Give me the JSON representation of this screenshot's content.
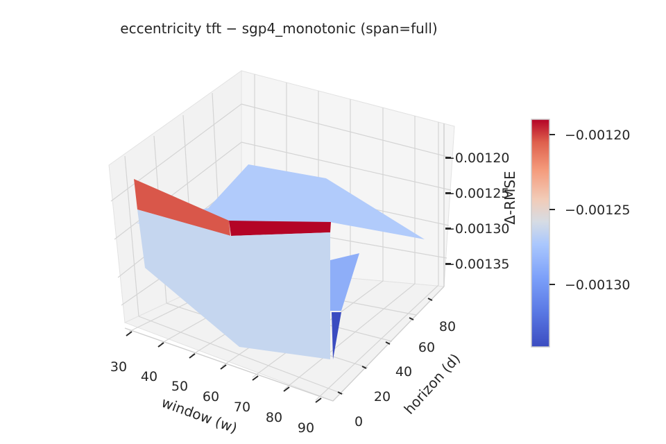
{
  "chart_data": {
    "type": "surface3d",
    "title": "eccentricity  tft − sgp4_monotonic  (span=full)",
    "xlabel": "window (w)",
    "ylabel": "horizon (d)",
    "zlabel": "Δ-RMSE",
    "x_ticks": [
      "30",
      "40",
      "50",
      "60",
      "70",
      "80",
      "90"
    ],
    "y_ticks": [
      "0",
      "20",
      "40",
      "60",
      "80"
    ],
    "z_ticks": [
      "−0.00120",
      "−0.00125",
      "−0.00130",
      "−0.00135"
    ],
    "colorbar": {
      "cmap": "coolwarm",
      "range": [
        -0.00135,
        -0.00118
      ],
      "ticks": [
        "−0.00120",
        "−0.00125",
        "−0.00130"
      ],
      "colors": {
        "low": "#3b4cc0",
        "mid": "#dddddd",
        "high": "#b40426"
      }
    },
    "grid": true,
    "x": [
      30,
      60,
      90
    ],
    "y": [
      0,
      45,
      90
    ],
    "z": [
      [
        -0.00128,
        -0.00129,
        -0.00125
      ],
      [
        -0.00131,
        -0.00134,
        -0.00119
      ],
      [
        -0.0013,
        -0.0013,
        -0.0013
      ]
    ]
  }
}
